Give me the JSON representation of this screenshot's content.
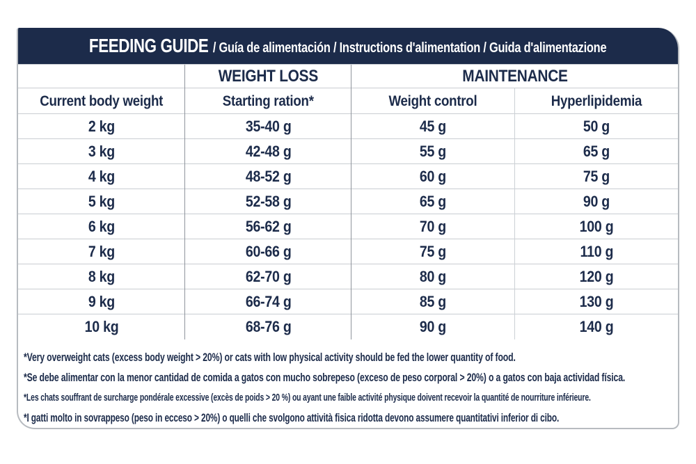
{
  "banner": {
    "title": "FEEDING GUIDE",
    "subtitle": "/ Guía de alimentación / Instructions d'alimentation / Guida d'alimentazione"
  },
  "table": {
    "group_headers": {
      "weight_loss": "WEIGHT LOSS",
      "maintenance": "MAINTENANCE"
    },
    "columns": [
      "Current body weight",
      "Starting ration*",
      "Weight control",
      "Hyperlipidemia"
    ],
    "rows": [
      [
        "2 kg",
        "35-40 g",
        "45 g",
        "50 g"
      ],
      [
        "3 kg",
        "42-48 g",
        "55 g",
        "65 g"
      ],
      [
        "4 kg",
        "48-52 g",
        "60 g",
        "75 g"
      ],
      [
        "5 kg",
        "52-58 g",
        "65 g",
        "90 g"
      ],
      [
        "6 kg",
        "56-62 g",
        "70 g",
        "100 g"
      ],
      [
        "7 kg",
        "60-66 g",
        "75 g",
        "110 g"
      ],
      [
        "8 kg",
        "62-70 g",
        "80 g",
        "120 g"
      ],
      [
        "9 kg",
        "66-74 g",
        "85 g",
        "130 g"
      ],
      [
        "10 kg",
        "68-76 g",
        "90 g",
        "140 g"
      ]
    ]
  },
  "footnotes": [
    "*Very overweight cats (excess body weight > 20%) or cats with low physical activity should be fed the lower quantity of food.",
    "*Se debe alimentar con la menor cantidad de comida a gatos con mucho sobrepeso (exceso de peso corporal > 20%) o a gatos con baja actividad física.",
    "*Les chats souffrant de surcharge pondérale excessive (excès de poids > 20 %) ou ayant une faible activité physique doivent recevoir la quantité de nourriture inférieure.",
    "*I gatti molto in sovrappeso (peso in ecceso > 20%) o quelli che svolgono attività fisica ridotta devono assumere quantitativi inferior di cibo."
  ],
  "colors": {
    "navy": "#1c2b4a",
    "banner_text": "#ffffff",
    "card_border": "#b7bbc0",
    "divider_strong": "#8f949c",
    "divider_light": "#ccd0d5",
    "row_line": "#c9cdd2",
    "page_bg": "#ffffff"
  }
}
